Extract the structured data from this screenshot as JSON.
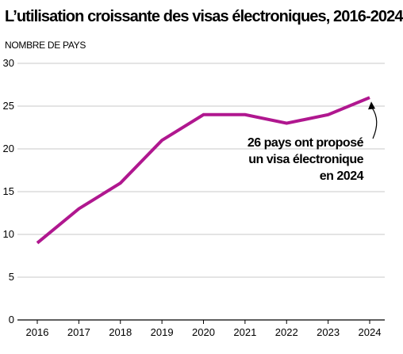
{
  "chart_data": {
    "type": "line",
    "title": "L’utilisation croissante des visas électroniques, 2016-2024",
    "ylabel": "NOMBRE DE PAYS",
    "xlabel": "",
    "categories": [
      "2016",
      "2017",
      "2018",
      "2019",
      "2020",
      "2021",
      "2022",
      "2023",
      "2024"
    ],
    "series": [
      {
        "values": [
          9,
          13,
          16,
          21,
          24,
          24,
          23,
          24,
          26
        ]
      }
    ],
    "ylim": [
      0,
      30
    ],
    "yticks": [
      0,
      5,
      10,
      15,
      20,
      25,
      30
    ],
    "grid": "horizontal",
    "line_color": "#b0178f",
    "annotation": {
      "lines": [
        "26 pays ont proposé",
        "un visa électronique",
        "en 2024"
      ],
      "target_category": "2024",
      "target_value": 26
    }
  }
}
